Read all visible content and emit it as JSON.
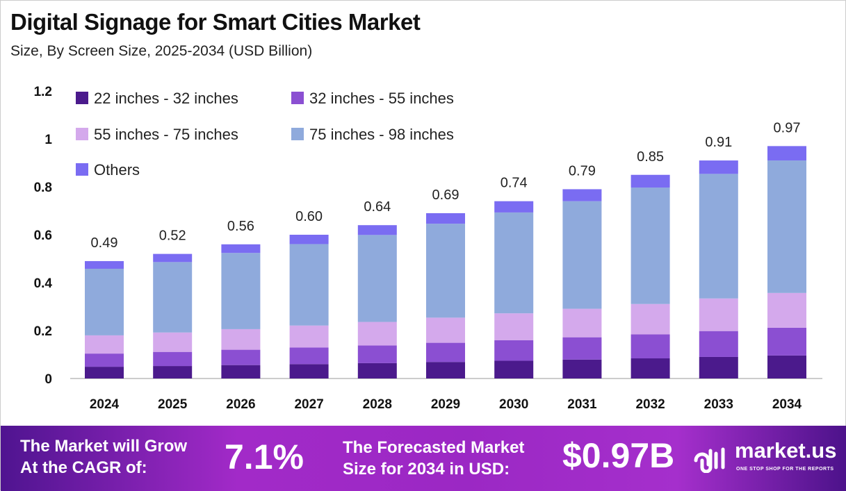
{
  "title": "Digital Signage for Smart Cities Market",
  "subtitle": "Size, By Screen Size, 2025-2034 (USD Billion)",
  "chart_data": {
    "type": "bar",
    "stacked": true,
    "categories": [
      "2024",
      "2025",
      "2026",
      "2027",
      "2028",
      "2029",
      "2030",
      "2031",
      "2032",
      "2033",
      "2034"
    ],
    "ylim": [
      0,
      1.2
    ],
    "yticks": [
      "0",
      "0.2",
      "0.4",
      "0.6",
      "0.8",
      "1",
      "1.2"
    ],
    "grid": false,
    "legend_position": "top-left",
    "series": [
      {
        "name": "22 inches - 32 inches",
        "color": "#4b1a8c",
        "values": [
          0.049,
          0.052,
          0.056,
          0.06,
          0.064,
          0.069,
          0.074,
          0.079,
          0.084,
          0.09,
          0.096
        ]
      },
      {
        "name": "32 inches - 55 inches",
        "color": "#8b4fd2",
        "values": [
          0.055,
          0.059,
          0.064,
          0.069,
          0.074,
          0.08,
          0.086,
          0.093,
          0.1,
          0.108,
          0.116
        ]
      },
      {
        "name": "55 inches - 75 inches",
        "color": "#d4a9ec",
        "values": [
          0.076,
          0.081,
          0.086,
          0.092,
          0.098,
          0.105,
          0.112,
          0.119,
          0.127,
          0.136,
          0.145
        ]
      },
      {
        "name": "75 inches - 98 inches",
        "color": "#8faadc",
        "values": [
          0.278,
          0.294,
          0.318,
          0.34,
          0.363,
          0.392,
          0.421,
          0.449,
          0.486,
          0.52,
          0.553
        ]
      },
      {
        "name": "Others",
        "color": "#7a6cf2",
        "values": [
          0.032,
          0.034,
          0.036,
          0.039,
          0.041,
          0.044,
          0.047,
          0.05,
          0.053,
          0.056,
          0.06
        ]
      }
    ],
    "totals": [
      "0.49",
      "0.52",
      "0.56",
      "0.60",
      "0.64",
      "0.69",
      "0.74",
      "0.79",
      "0.85",
      "0.91",
      "0.97"
    ]
  },
  "footer": {
    "cagr_label_1": "The Market will Grow",
    "cagr_label_2": "At the CAGR of:",
    "cagr_value": "7.1%",
    "forecast_label_1": "The Forecasted Market",
    "forecast_label_2": "Size for 2034 in USD:",
    "forecast_value": "$0.97B",
    "logo_text": "market.us",
    "logo_tagline": "ONE STOP SHOP FOR THE REPORTS"
  }
}
